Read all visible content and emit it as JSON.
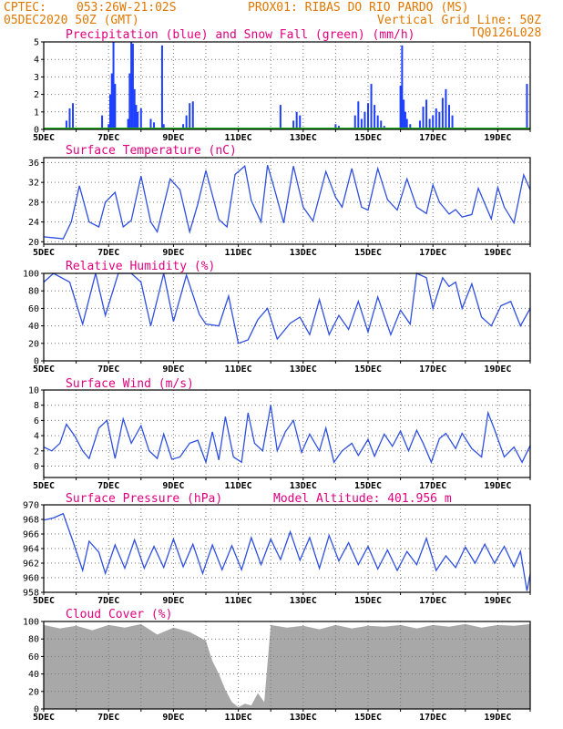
{
  "header": {
    "line1_left": "CPTEC:",
    "line1_coords": "053:26W-21:02S",
    "line1_station": "PROX01: RIBAS DO RIO PARDO (MS)",
    "line2_left": "05DEC2020 50Z (GMT)",
    "line2_right": "Vertical Grid Line: 50Z",
    "line3_right": "TQ0126L028"
  },
  "colors": {
    "precip": "#1f3fff",
    "snow": "#20b020",
    "line": "#2f4fe0",
    "cloud": "#a8a8a8",
    "header": "#e07800",
    "title": "#e0007f"
  },
  "x_labels": [
    "5DEC",
    "7DEC",
    "9DEC",
    "11DEC",
    "13DEC",
    "15DEC",
    "17DEC",
    "19DEC"
  ],
  "chart_data": [
    {
      "type": "bar",
      "title": "Precipitation (blue) and Snow Fall (green) (mm/h)",
      "x_range": [
        5,
        20
      ],
      "ylim": [
        0,
        5
      ],
      "yticks": [
        0,
        1,
        2,
        3,
        4,
        5
      ],
      "series": [
        {
          "name": "Precipitation",
          "x": [
            5.7,
            5.8,
            5.9,
            6.8,
            7.0,
            7.05,
            7.1,
            7.15,
            7.2,
            7.6,
            7.65,
            7.7,
            7.75,
            7.8,
            7.85,
            7.9,
            8.0,
            8.3,
            8.4,
            8.65,
            8.7,
            9.3,
            9.4,
            9.5,
            9.6,
            10.0,
            12.3,
            12.7,
            12.8,
            12.9,
            14.0,
            14.1,
            14.6,
            14.7,
            14.8,
            14.9,
            15.0,
            15.1,
            15.2,
            15.3,
            15.4,
            15.5,
            16.0,
            16.05,
            16.1,
            16.15,
            16.2,
            16.3,
            16.6,
            16.7,
            16.8,
            16.9,
            17.0,
            17.1,
            17.2,
            17.3,
            17.4,
            17.5,
            17.6,
            19.9
          ],
          "values": [
            0.5,
            1.2,
            1.5,
            0.8,
            0.3,
            2.0,
            3.2,
            5.0,
            2.6,
            0.6,
            3.2,
            5.1,
            4.9,
            2.3,
            1.4,
            1.0,
            1.2,
            0.6,
            0.4,
            4.8,
            0.3,
            0.3,
            0.8,
            1.5,
            1.6,
            0.1,
            1.4,
            0.5,
            1.0,
            0.8,
            0.3,
            0.2,
            0.8,
            1.6,
            0.6,
            1.0,
            1.5,
            2.6,
            1.4,
            0.8,
            0.5,
            0.2,
            2.5,
            4.8,
            1.7,
            1.0,
            0.6,
            0.3,
            0.5,
            1.3,
            1.7,
            0.6,
            0.8,
            1.2,
            1.0,
            1.8,
            2.3,
            1.4,
            0.8,
            2.6
          ]
        },
        {
          "name": "Snow Fall",
          "x": [
            5,
            20
          ],
          "values": [
            0,
            0
          ]
        }
      ]
    },
    {
      "type": "line",
      "title": "Surface Temperature (nC)",
      "x_range": [
        5,
        20
      ],
      "ylim": [
        19.5,
        37
      ],
      "yticks": [
        20,
        24,
        28,
        32,
        36
      ],
      "x": [
        5.0,
        5.3,
        5.6,
        5.85,
        6.1,
        6.4,
        6.7,
        6.9,
        7.2,
        7.45,
        7.7,
        8.0,
        8.3,
        8.5,
        8.9,
        9.2,
        9.5,
        9.75,
        10.0,
        10.4,
        10.65,
        10.9,
        11.2,
        11.4,
        11.7,
        11.9,
        12.1,
        12.4,
        12.7,
        13.0,
        13.3,
        13.7,
        14.0,
        14.2,
        14.5,
        14.8,
        15.0,
        15.3,
        15.6,
        15.9,
        16.2,
        16.5,
        16.8,
        17.0,
        17.2,
        17.5,
        17.7,
        17.9,
        18.2,
        18.4,
        18.8,
        19.0,
        19.2,
        19.5,
        19.8,
        20.0
      ],
      "series": [
        {
          "values": [
            21,
            20.8,
            20.6,
            24,
            31.3,
            24,
            23,
            28,
            30,
            23,
            24.3,
            33.3,
            24,
            22,
            32.7,
            30.5,
            22,
            27.6,
            34.4,
            24.5,
            23,
            33.6,
            35.3,
            28.3,
            24,
            35.5,
            31,
            23.8,
            35.3,
            27,
            24.2,
            34.2,
            29,
            27,
            34.8,
            27,
            26.4,
            34.8,
            28.5,
            26.4,
            32.7,
            27,
            25.7,
            31.5,
            28,
            25.6,
            26.5,
            25,
            25.5,
            30.8,
            24.6,
            31,
            27,
            23.8,
            33.5,
            30.5
          ]
        }
      ]
    },
    {
      "type": "line",
      "title": "Relative Humidity (%)",
      "x_range": [
        5,
        20
      ],
      "ylim": [
        0,
        100
      ],
      "yticks": [
        0,
        20,
        40,
        60,
        80,
        100
      ],
      "x": [
        5.0,
        5.3,
        5.8,
        6.2,
        6.6,
        6.9,
        7.3,
        7.7,
        8.0,
        8.3,
        8.7,
        9.0,
        9.4,
        9.8,
        10.0,
        10.4,
        10.7,
        11.0,
        11.3,
        11.6,
        11.9,
        12.2,
        12.6,
        12.9,
        13.2,
        13.5,
        13.8,
        14.1,
        14.4,
        14.7,
        15.0,
        15.3,
        15.7,
        16.0,
        16.3,
        16.5,
        16.8,
        17.0,
        17.3,
        17.5,
        17.7,
        17.9,
        18.2,
        18.5,
        18.8,
        19.1,
        19.4,
        19.7,
        20.0
      ],
      "series": [
        {
          "values": [
            90,
            100,
            90,
            42,
            100,
            52,
            100,
            100,
            90,
            40,
            100,
            45,
            98,
            53,
            42,
            40,
            74,
            20,
            24,
            47,
            60,
            25,
            43,
            50,
            30,
            70,
            30,
            52,
            36,
            68,
            33,
            73,
            30,
            58,
            42,
            100,
            95,
            60,
            95,
            85,
            90,
            60,
            88,
            50,
            40,
            63,
            68,
            40,
            60
          ]
        }
      ]
    },
    {
      "type": "line",
      "title": "Surface Wind (m/s)",
      "x_range": [
        5,
        20
      ],
      "ylim": [
        -1.5,
        10
      ],
      "yticks": [
        0,
        2,
        4,
        6,
        8,
        10
      ],
      "x": [
        5.0,
        5.25,
        5.5,
        5.7,
        5.95,
        6.2,
        6.4,
        6.7,
        6.95,
        7.2,
        7.45,
        7.7,
        8.0,
        8.25,
        8.5,
        8.7,
        8.95,
        9.2,
        9.5,
        9.75,
        10.0,
        10.2,
        10.4,
        10.6,
        10.85,
        11.1,
        11.3,
        11.5,
        11.75,
        12.0,
        12.2,
        12.45,
        12.7,
        12.95,
        13.2,
        13.5,
        13.7,
        13.95,
        14.2,
        14.5,
        14.7,
        15.0,
        15.2,
        15.5,
        15.75,
        16.0,
        16.25,
        16.5,
        16.7,
        16.95,
        17.2,
        17.4,
        17.7,
        17.9,
        18.2,
        18.5,
        18.7,
        18.9,
        19.2,
        19.5,
        19.75,
        20.0
      ],
      "series": [
        {
          "values": [
            2.5,
            2,
            3,
            5.5,
            4,
            2,
            1,
            5,
            6,
            1,
            6.2,
            3,
            5.3,
            2,
            1,
            4.2,
            0.9,
            1.2,
            3,
            3.4,
            0.5,
            4.5,
            0.8,
            6.5,
            1.2,
            0.5,
            7,
            3,
            2,
            8,
            2,
            4.5,
            6,
            1.8,
            4.2,
            2,
            5,
            0.5,
            2,
            3,
            1.4,
            3.5,
            1.3,
            4.2,
            2.6,
            4.6,
            2,
            4.7,
            3,
            0.5,
            3.6,
            4.3,
            2.3,
            4.3,
            2.3,
            1.2,
            7,
            4.8,
            1.2,
            2.5,
            0.5,
            2.7
          ]
        }
      ]
    },
    {
      "type": "line",
      "title": "Surface Pressure (hPa)",
      "annotation": "Model Altitude: 401.956 m",
      "x_range": [
        5,
        20
      ],
      "ylim": [
        958,
        970
      ],
      "yticks": [
        958,
        960,
        962,
        964,
        966,
        968,
        970
      ],
      "x": [
        5.0,
        5.3,
        5.6,
        5.9,
        6.2,
        6.4,
        6.7,
        6.9,
        7.2,
        7.5,
        7.8,
        8.1,
        8.4,
        8.7,
        9.0,
        9.3,
        9.6,
        9.9,
        10.2,
        10.5,
        10.8,
        11.1,
        11.4,
        11.7,
        12.0,
        12.3,
        12.6,
        12.9,
        13.2,
        13.5,
        13.8,
        14.1,
        14.4,
        14.7,
        15.0,
        15.3,
        15.6,
        15.9,
        16.2,
        16.5,
        16.8,
        17.1,
        17.4,
        17.7,
        18.0,
        18.3,
        18.6,
        18.9,
        19.2,
        19.5,
        19.7,
        19.9,
        20.0
      ],
      "series": [
        {
          "values": [
            967.9,
            968.2,
            968.8,
            965,
            961,
            965,
            963.5,
            960.6,
            964.5,
            961.3,
            965.2,
            961.3,
            964.3,
            961.4,
            965.3,
            961.5,
            964.6,
            960.6,
            964.5,
            961.1,
            964.4,
            961.1,
            965.5,
            961.8,
            965.3,
            962.5,
            966.3,
            962.4,
            965.5,
            961.3,
            965.8,
            962.3,
            964.8,
            961.8,
            964.3,
            961.2,
            963.8,
            961,
            963.6,
            961.8,
            965.4,
            961,
            963,
            961.4,
            964.2,
            962,
            964.6,
            962,
            964.3,
            961.5,
            963.6,
            958.2,
            960.5
          ]
        }
      ]
    },
    {
      "type": "area",
      "title": "Cloud Cover (%)",
      "x_range": [
        5,
        20
      ],
      "ylim": [
        0,
        100
      ],
      "yticks": [
        0,
        20,
        40,
        60,
        80,
        100
      ],
      "x": [
        5.0,
        5.5,
        6.0,
        6.5,
        7.0,
        7.5,
        8.0,
        8.5,
        9.0,
        9.5,
        10.0,
        10.2,
        10.4,
        10.6,
        10.8,
        11.0,
        11.2,
        11.4,
        11.6,
        11.8,
        12.0,
        12.5,
        13.0,
        13.5,
        14.0,
        14.5,
        15.0,
        15.5,
        16.0,
        16.5,
        17.0,
        17.5,
        18.0,
        18.5,
        19.0,
        19.5,
        20.0
      ],
      "series": [
        {
          "values": [
            96,
            92,
            95,
            90,
            96,
            93,
            97,
            85,
            93,
            88,
            78,
            55,
            40,
            22,
            8,
            2,
            6,
            4,
            18,
            8,
            96,
            93,
            95,
            91,
            96,
            92,
            95,
            94,
            96,
            92,
            96,
            94,
            97,
            93,
            96,
            95,
            97
          ]
        }
      ]
    }
  ]
}
